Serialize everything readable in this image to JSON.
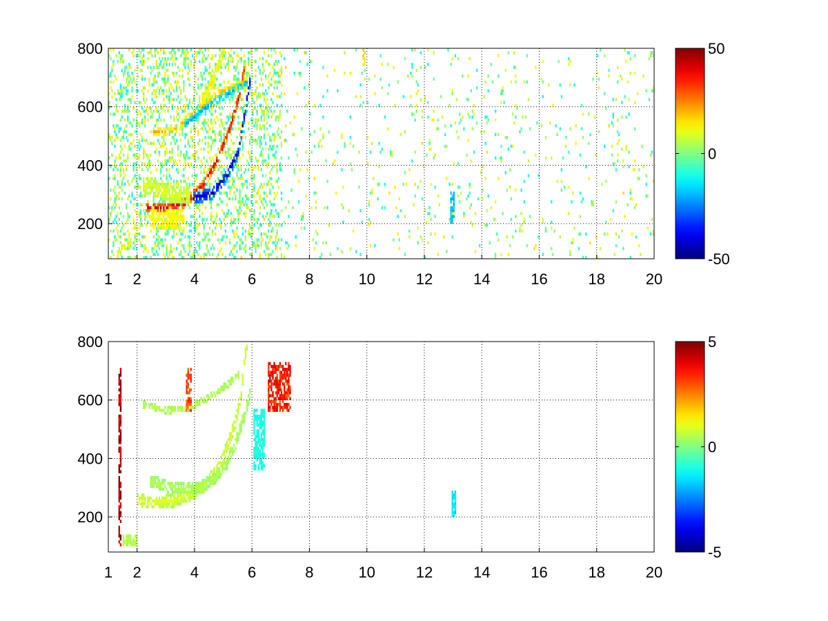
{
  "colormap": "jet",
  "chart_data": [
    {
      "type": "heatmap",
      "title": "",
      "xlabel": "",
      "ylabel": "",
      "xlim": [
        1,
        20
      ],
      "ylim": [
        80,
        800
      ],
      "grid": true,
      "grid_style": "dotted",
      "xticks": [
        1,
        2,
        4,
        6,
        8,
        10,
        12,
        14,
        16,
        18,
        20
      ],
      "xtick_labels": [
        "1",
        "2",
        "4",
        "6",
        "8",
        "10",
        "12",
        "14",
        "16",
        "18",
        "20"
      ],
      "yticks": [
        200,
        400,
        600,
        800
      ],
      "ytick_labels": [
        "200",
        "400",
        "600",
        "800"
      ],
      "colorbar": {
        "cmin": -50,
        "cmax": 50,
        "tick_labels": [
          "50",
          "0",
          "-50"
        ],
        "position": "right"
      },
      "features": [
        {
          "shape": "arc",
          "points": [
            [
              2.3,
              250
            ],
            [
              3.0,
              250
            ],
            [
              3.7,
              270
            ],
            [
              4.3,
              330
            ],
            [
              4.8,
              420
            ],
            [
              5.2,
              520
            ],
            [
              5.5,
              620
            ],
            [
              5.7,
              720
            ]
          ],
          "value": 42,
          "spread": 18,
          "x_range": [
            2.0,
            5.8
          ]
        },
        {
          "shape": "arc",
          "points": [
            [
              3.9,
              280
            ],
            [
              4.6,
              300
            ],
            [
              5.1,
              360
            ],
            [
              5.5,
              440
            ],
            [
              5.7,
              560
            ],
            [
              5.9,
              680
            ],
            [
              5.9,
              780
            ]
          ],
          "value": -45,
          "spread": 20,
          "x_range": [
            3.6,
            6.1
          ]
        },
        {
          "shape": "arc",
          "points": [
            [
              2.2,
              330
            ],
            [
              2.8,
              310
            ],
            [
              3.3,
              290
            ],
            [
              3.8,
              300
            ]
          ],
          "value": 10,
          "spread": 30,
          "x_range": [
            1.9,
            3.9
          ]
        },
        {
          "shape": "arc",
          "points": [
            [
              2.5,
              510
            ],
            [
              3.2,
              510
            ],
            [
              3.8,
              560
            ],
            [
              4.3,
              600
            ],
            [
              4.8,
              640
            ],
            [
              5.3,
              660
            ],
            [
              5.8,
              680
            ]
          ],
          "value": 20,
          "spread": 15,
          "x_range": [
            2.3,
            6.0
          ]
        },
        {
          "shape": "arc",
          "points": [
            [
              3.6,
              530
            ],
            [
              4.2,
              580
            ],
            [
              4.8,
              620
            ],
            [
              5.3,
              650
            ],
            [
              5.8,
              680
            ]
          ],
          "value": -22,
          "spread": 12,
          "x_range": [
            3.5,
            6.0
          ]
        },
        {
          "shape": "arc",
          "points": [
            [
              4.2,
              610
            ],
            [
              4.6,
              680
            ],
            [
              4.9,
              760
            ],
            [
              5.0,
              800
            ]
          ],
          "value": 15,
          "spread": 25,
          "x_range": [
            4.0,
            5.2
          ]
        },
        {
          "shape": "arc",
          "points": [
            [
              1.3,
              90
            ],
            [
              1.5,
              110
            ],
            [
              1.8,
              130
            ]
          ],
          "value": 12,
          "spread": 15,
          "x_range": [
            1.2,
            1.9
          ]
        },
        {
          "shape": "box",
          "x_range": [
            2.4,
            3.6
          ],
          "y_range": [
            180,
            240
          ],
          "value": 12
        },
        {
          "shape": "box",
          "x_range": [
            12.9,
            13.05
          ],
          "y_range": [
            200,
            300
          ],
          "value": -18
        },
        {
          "shape": "box",
          "x_range": [
            9.85,
            9.95
          ],
          "y_range": [
            740,
            800
          ],
          "value": 15
        }
      ],
      "sparse_noise": {
        "density_near": 0.7,
        "density_far": 0.18,
        "value_range": [
          -12,
          16
        ],
        "x_range": [
          1,
          20
        ]
      }
    },
    {
      "type": "heatmap",
      "title": "",
      "xlabel": "",
      "ylabel": "",
      "xlim": [
        1,
        20
      ],
      "ylim": [
        80,
        800
      ],
      "grid": true,
      "grid_style": "dotted",
      "xticks": [
        1,
        2,
        4,
        6,
        8,
        10,
        12,
        14,
        16,
        18,
        20
      ],
      "xtick_labels": [
        "1",
        "2",
        "4",
        "6",
        "8",
        "10",
        "12",
        "14",
        "16",
        "18",
        "20"
      ],
      "yticks": [
        200,
        400,
        600,
        800
      ],
      "ytick_labels": [
        "200",
        "400",
        "600",
        "800"
      ],
      "colorbar": {
        "cmin": -5,
        "cmax": 5,
        "tick_labels": [
          "5",
          "0",
          "-5"
        ],
        "position": "right"
      },
      "features": [
        {
          "shape": "arc",
          "points": [
            [
              2.0,
              250
            ],
            [
              2.6,
              245
            ],
            [
              3.2,
              250
            ],
            [
              3.8,
              270
            ],
            [
              4.3,
              300
            ],
            [
              4.8,
              360
            ],
            [
              5.1,
              430
            ],
            [
              5.4,
              520
            ],
            [
              5.6,
              620
            ],
            [
              5.7,
              720
            ],
            [
              5.8,
              790
            ]
          ],
          "value": 1.0,
          "spread": 22,
          "x_range": [
            1.9,
            6.0
          ]
        },
        {
          "shape": "arc",
          "points": [
            [
              2.4,
              320
            ],
            [
              3.0,
              300
            ],
            [
              3.6,
              290
            ],
            [
              4.2,
              300
            ],
            [
              4.7,
              330
            ],
            [
              5.1,
              380
            ],
            [
              5.4,
              450
            ],
            [
              5.7,
              540
            ],
            [
              5.9,
              620
            ]
          ],
          "value": 0.5,
          "spread": 20,
          "x_range": [
            2.2,
            6.2
          ]
        },
        {
          "shape": "arc",
          "points": [
            [
              2.2,
              580
            ],
            [
              3.0,
              560
            ],
            [
              3.8,
              570
            ],
            [
              4.4,
              600
            ],
            [
              5.0,
              640
            ],
            [
              5.5,
              680
            ]
          ],
          "value": 0.6,
          "spread": 12,
          "x_range": [
            2.1,
            5.8
          ]
        },
        {
          "shape": "box",
          "x_range": [
            6.5,
            7.3
          ],
          "y_range": [
            560,
            720
          ],
          "value": 3.5
        },
        {
          "shape": "box",
          "x_range": [
            3.65,
            3.85
          ],
          "y_range": [
            560,
            700
          ],
          "value": 3.0
        },
        {
          "shape": "box",
          "x_range": [
            12.93,
            13.07
          ],
          "y_range": [
            200,
            280
          ],
          "value": -1.5
        },
        {
          "shape": "box",
          "x_range": [
            1.35,
            1.45
          ],
          "y_range": [
            100,
            700
          ],
          "value": 4.5
        },
        {
          "shape": "box",
          "x_range": [
            6.0,
            6.4
          ],
          "y_range": [
            360,
            560
          ],
          "value": -1.0
        },
        {
          "shape": "box",
          "x_range": [
            1.5,
            2.0
          ],
          "y_range": [
            100,
            130
          ],
          "value": 0.5
        }
      ],
      "sparse_noise": {
        "density_near": 0.0,
        "density_far": 0.0,
        "value_range": [
          -1,
          1
        ],
        "x_range": [
          1,
          8
        ]
      }
    }
  ]
}
